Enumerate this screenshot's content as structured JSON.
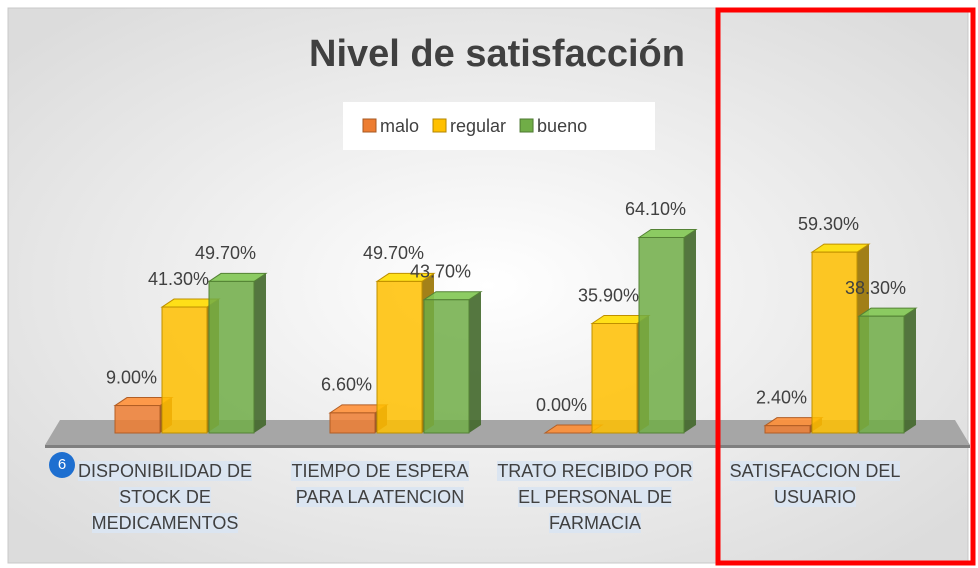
{
  "chart_data": {
    "type": "bar3d",
    "title": "Nivel de satisfacción",
    "categories": [
      "DISPONIBILIDAD DE STOCK DE MEDICAMENTOS",
      "TIEMPO DE ESPERA PARA LA ATENCION",
      "TRATO RECIBIDO POR EL PERSONAL DE FARMACIA",
      "SATISFACCION DEL USUARIO"
    ],
    "series": [
      {
        "name": "malo",
        "color": "#ed7d31",
        "values": [
          9.0,
          6.6,
          0.0,
          2.4
        ],
        "value_labels": [
          "9.00%",
          "6.60%",
          "0.00%",
          "2.40%"
        ]
      },
      {
        "name": "regular",
        "color": "#ffc000",
        "values": [
          41.3,
          49.7,
          35.9,
          59.3
        ],
        "value_labels": [
          "41.30%",
          "49.70%",
          "35.90%",
          "59.30%"
        ]
      },
      {
        "name": "bueno",
        "color": "#70ad47",
        "values": [
          49.7,
          43.7,
          64.1,
          38.3
        ],
        "value_labels": [
          "49.70%",
          "43.70%",
          "64.10%",
          "38.30%"
        ]
      }
    ],
    "legend": "top",
    "annotation": "6"
  }
}
